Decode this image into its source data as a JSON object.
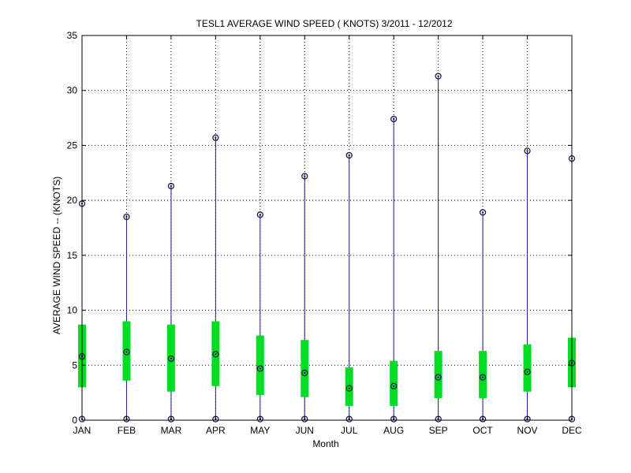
{
  "chart_data": {
    "type": "box",
    "title": "TESL1  AVERAGE WIND SPEED ( KNOTS) 3/2011 - 12/2012",
    "xlabel": "Month",
    "ylabel": "AVERAGE WIND SPEED -- (KNOTS)",
    "ylim": [
      0,
      35
    ],
    "yticks": [
      0,
      5,
      10,
      15,
      20,
      25,
      30,
      35
    ],
    "grid": true,
    "categories": [
      "JAN",
      "FEB",
      "MAR",
      "APR",
      "MAY",
      "JUN",
      "JUL",
      "AUG",
      "SEP",
      "OCT",
      "NOV",
      "DEC"
    ],
    "min": [
      0.1,
      0.1,
      0.1,
      0.1,
      0.1,
      0.1,
      0.1,
      0.1,
      0.1,
      0.1,
      0.1,
      0.1
    ],
    "q1": [
      3.0,
      3.6,
      2.6,
      3.1,
      2.3,
      2.1,
      1.3,
      1.3,
      2.0,
      2.0,
      2.6,
      3.0
    ],
    "mean": [
      5.8,
      6.2,
      5.6,
      6.0,
      4.7,
      4.3,
      2.9,
      3.1,
      3.9,
      3.9,
      4.4,
      5.2
    ],
    "q3": [
      8.7,
      9.0,
      8.7,
      9.0,
      7.7,
      7.3,
      4.8,
      5.4,
      6.3,
      6.3,
      6.9,
      7.5
    ],
    "max": [
      19.7,
      18.5,
      21.3,
      25.7,
      18.7,
      22.2,
      24.1,
      27.4,
      31.3,
      18.9,
      24.5,
      23.8
    ],
    "colors": {
      "whisker": "#1f1f8f",
      "box": "#00dd22",
      "marker": "#1a1a4a",
      "axis": "#000000",
      "grid": "#000000"
    }
  }
}
